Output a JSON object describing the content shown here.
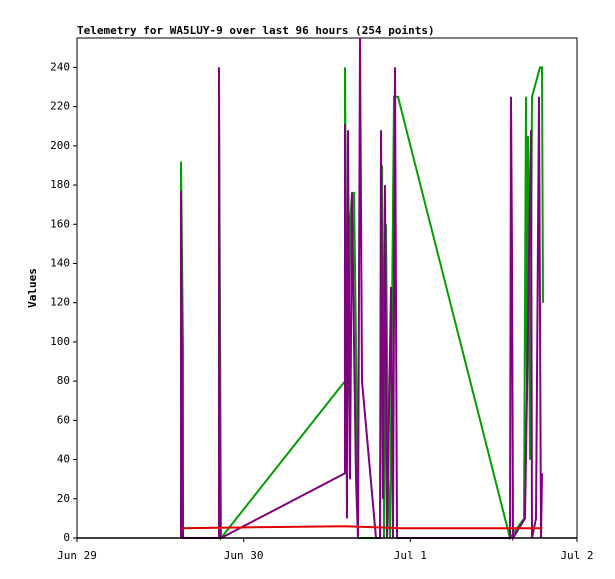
{
  "chart_data": {
    "type": "line",
    "title": "Telemetry for WA5LUY-9 over last 96 hours (254 points)",
    "y_label": "Values",
    "xlim": [
      0,
      3
    ],
    "xticks": [
      {
        "value": 0,
        "label": "Jun 29"
      },
      {
        "value": 1,
        "label": "Jun 30"
      },
      {
        "value": 2,
        "label": "Jul 1"
      },
      {
        "value": 3,
        "label": "Jul 2"
      }
    ],
    "ylim": [
      0,
      255
    ],
    "yticks": [
      0,
      20,
      40,
      60,
      80,
      100,
      120,
      140,
      160,
      180,
      200,
      220,
      240
    ],
    "series": [
      {
        "color": "#00a000",
        "x": [
          0.624,
          0.624,
          0.636,
          0.636,
          0.852,
          0.852,
          0.864,
          1.608,
          1.608,
          1.62,
          1.638,
          1.65,
          1.662,
          1.674,
          1.686,
          1.818,
          1.83,
          1.842,
          1.854,
          1.866,
          1.878,
          1.902,
          1.92,
          1.926,
          2.598,
          2.682,
          2.694,
          2.7,
          2.706,
          2.718,
          2.73,
          2.778,
          2.79,
          2.796
        ],
        "values": [
          0,
          192,
          97,
          0,
          0,
          225,
          0,
          80,
          240,
          60,
          160,
          176,
          176,
          100,
          0,
          0,
          190,
          0,
          160,
          30,
          0,
          225,
          225,
          225,
          0,
          10,
          225,
          70,
          205,
          40,
          225,
          240,
          240,
          120
        ]
      },
      {
        "color": "#800080",
        "x": [
          0.624,
          0.624,
          0.636,
          0.852,
          0.852,
          0.858,
          0.864,
          1.608,
          1.608,
          1.62,
          1.626,
          1.638,
          1.65,
          1.662,
          1.674,
          1.686,
          1.698,
          1.71,
          1.794,
          1.818,
          1.824,
          1.836,
          1.848,
          1.86,
          1.884,
          1.896,
          1.908,
          1.92,
          2.598,
          2.604,
          2.61,
          2.616,
          2.688,
          2.724,
          2.73,
          2.754,
          2.772,
          2.784,
          2.79
        ],
        "values": [
          0,
          177,
          0,
          0,
          240,
          0,
          0,
          33,
          211,
          10,
          208,
          30,
          176,
          100,
          30,
          0,
          255,
          80,
          0,
          0,
          208,
          20,
          180,
          0,
          128,
          0,
          240,
          0,
          0,
          225,
          145,
          0,
          10,
          208,
          0,
          10,
          225,
          0,
          33
        ]
      },
      {
        "color": "#e00000",
        "x": [
          0.624,
          1.608,
          1.938,
          2.784
        ],
        "values": [
          5,
          6,
          5,
          5
        ]
      }
    ]
  }
}
